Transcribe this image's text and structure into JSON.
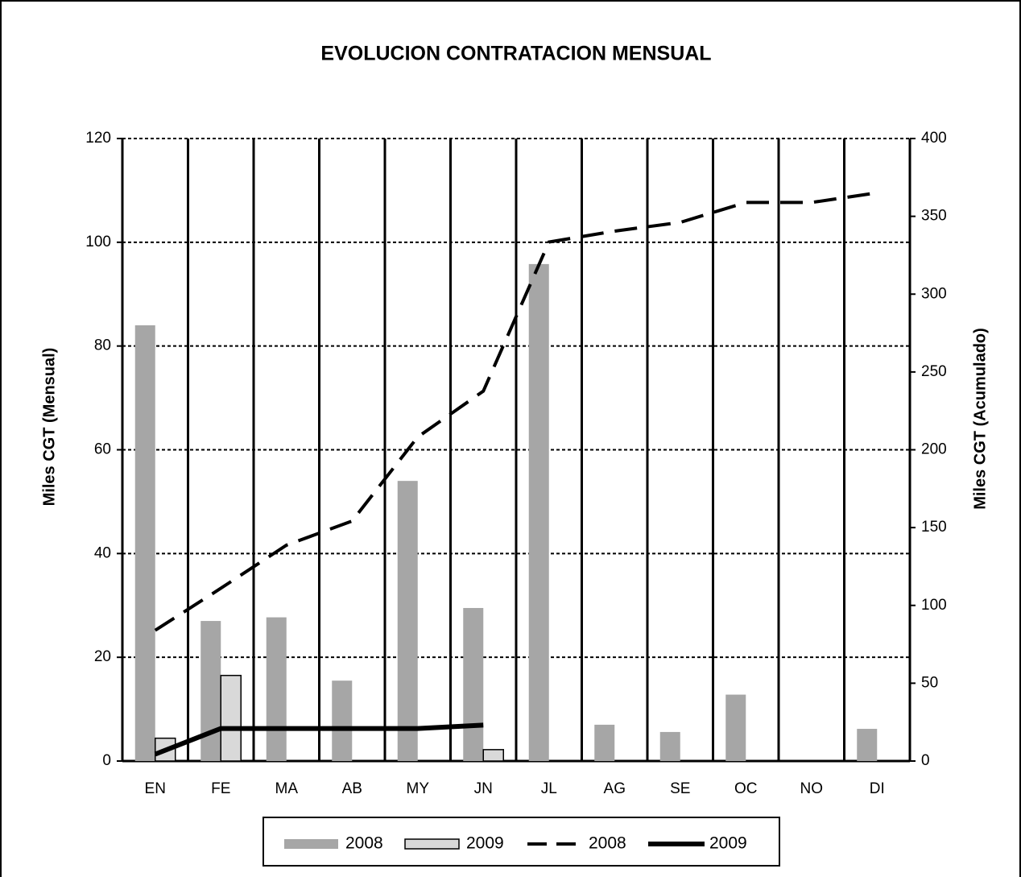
{
  "chart_data": {
    "type": "bar",
    "title": "EVOLUCION CONTRATACION MENSUAL",
    "y_label": "Miles CGT  (Mensual)",
    "y2_label": "Miles CGT  (Acumulado)",
    "categories": [
      "EN",
      "FE",
      "MA",
      "AB",
      "MY",
      "JN",
      "JL",
      "AG",
      "SE",
      "OC",
      "NO",
      "DI"
    ],
    "series": [
      {
        "name": "2008",
        "type": "bar",
        "color": "#a6a6a6",
        "values": [
          84,
          27,
          27.7,
          15.5,
          54,
          29.5,
          95.8,
          7,
          5.6,
          12.8,
          0,
          6.2
        ]
      },
      {
        "name": "2009",
        "type": "bar",
        "color": "#d9d9d9",
        "values": [
          4.4,
          16.5,
          0,
          0,
          0,
          2.2,
          null,
          null,
          null,
          null,
          null,
          null
        ]
      },
      {
        "name": "2008",
        "type": "line",
        "style": "dashed",
        "axis": "y2",
        "color": "#000000",
        "values": [
          84,
          111,
          138.7,
          154.2,
          208.2,
          237.7,
          333.5,
          340.5,
          346.1,
          358.9,
          358.9,
          365.1
        ]
      },
      {
        "name": "2009",
        "type": "line",
        "style": "solid",
        "axis": "y2",
        "color": "#000000",
        "values": [
          4.4,
          20.9,
          20.9,
          20.9,
          20.9,
          23.1,
          null,
          null,
          null,
          null,
          null,
          null
        ]
      }
    ],
    "ylim": [
      0,
      120
    ],
    "yticks": [
      0,
      20,
      40,
      60,
      80,
      100,
      120
    ],
    "y2lim": [
      0,
      400
    ],
    "y2ticks": [
      0,
      50,
      100,
      150,
      200,
      250,
      300,
      350,
      400
    ],
    "grid": true,
    "legend": "bottom"
  }
}
